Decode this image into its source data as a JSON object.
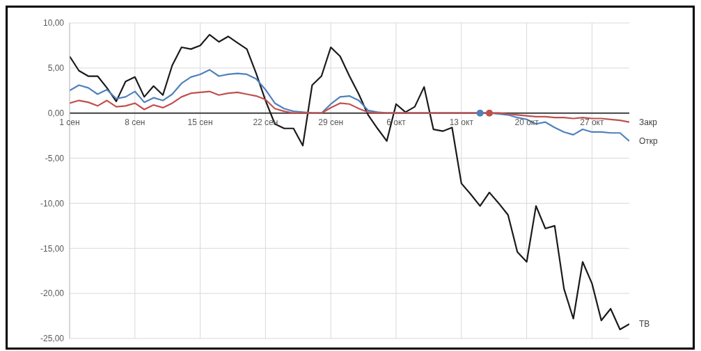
{
  "chart_data": {
    "type": "line",
    "x": [
      "--09-01",
      "--09-02",
      "--09-03",
      "--09-04",
      "--09-05",
      "--09-06",
      "--09-07",
      "--09-08",
      "--09-09",
      "--09-10",
      "--09-11",
      "--09-12",
      "--09-13",
      "--09-14",
      "--09-15",
      "--09-16",
      "--09-17",
      "--09-18",
      "--09-19",
      "--09-20",
      "--09-21",
      "--09-22",
      "--09-23",
      "--09-24",
      "--09-25",
      "--09-26",
      "--09-27",
      "--09-28",
      "--09-29",
      "--09-30",
      "--10-01",
      "--10-02",
      "--10-03",
      "--10-04",
      "--10-05",
      "--10-06",
      "--10-07",
      "--10-08",
      "--10-09",
      "--10-10",
      "--10-11",
      "--10-12",
      "--10-13",
      "--10-14",
      "--10-15",
      "--10-16",
      "--10-17",
      "--10-18",
      "--10-19",
      "--10-20",
      "--10-21",
      "--10-22",
      "--10-23",
      "--10-24",
      "--10-25",
      "--10-26",
      "--10-27",
      "--10-28",
      "--10-29",
      "--10-30",
      "--10-31"
    ],
    "series": [
      {
        "name": "ТВ",
        "color": "#1a1a1a",
        "values": [
          6.3,
          4.7,
          4.1,
          4.1,
          2.8,
          1.3,
          3.5,
          4.0,
          1.8,
          3.0,
          2.0,
          5.3,
          7.3,
          7.1,
          7.5,
          8.7,
          7.9,
          8.5,
          7.8,
          7.1,
          4.4,
          1.4,
          -1.2,
          -1.7,
          -1.7,
          -3.6,
          3.1,
          4.1,
          7.3,
          6.3,
          4.1,
          2.1,
          -0.2,
          -1.7,
          -3.1,
          1.0,
          0.1,
          0.7,
          2.9,
          -1.8,
          -2.0,
          -1.6,
          -7.8,
          -9.0,
          -10.3,
          -8.8,
          -10.0,
          -11.3,
          -15.4,
          -16.5,
          -10.3,
          -12.8,
          -12.5,
          -19.5,
          -22.8,
          -16.5,
          -18.9,
          -23.0,
          -21.7,
          -24.0,
          -23.4
        ]
      },
      {
        "name": "Откр",
        "color": "#4f81bd",
        "values": [
          2.5,
          3.1,
          2.8,
          2.1,
          2.6,
          1.6,
          1.8,
          2.4,
          1.2,
          1.7,
          1.4,
          2.1,
          3.3,
          4.0,
          4.3,
          4.8,
          4.1,
          4.3,
          4.4,
          4.3,
          3.8,
          2.6,
          1.1,
          0.5,
          0.2,
          0.1,
          0,
          0,
          1.0,
          1.8,
          1.9,
          1.4,
          0.3,
          0.1,
          0,
          0,
          0,
          0,
          0,
          0,
          0,
          0,
          0,
          0,
          0,
          0,
          -0.1,
          -0.2,
          -0.5,
          -0.7,
          -1.2,
          -1.0,
          -1.6,
          -2.1,
          -2.4,
          -1.8,
          -2.1,
          -2.1,
          -2.2,
          -2.2,
          -3.1
        ]
      },
      {
        "name": "Закр",
        "color": "#c0504d",
        "values": [
          1.1,
          1.4,
          1.2,
          0.8,
          1.4,
          0.7,
          0.8,
          1.1,
          0.4,
          0.9,
          0.6,
          1.1,
          1.8,
          2.2,
          2.3,
          2.4,
          2.0,
          2.2,
          2.3,
          2.1,
          1.9,
          1.5,
          0.5,
          0.2,
          0,
          0,
          0,
          0,
          0.6,
          1.1,
          1.0,
          0.5,
          0.1,
          0,
          0,
          0,
          0,
          0,
          0,
          0,
          0,
          0,
          0,
          0,
          0,
          0,
          0,
          -0.1,
          -0.2,
          -0.3,
          -0.4,
          -0.4,
          -0.5,
          -0.5,
          -0.6,
          -0.5,
          -0.6,
          -0.6,
          -0.7,
          -0.8,
          -1.0
        ]
      },
      {
        "type": "scatter",
        "marker": "circle",
        "color": "#4f81bd",
        "x": [
          "--10-15"
        ],
        "values": [
          0
        ]
      },
      {
        "type": "scatter",
        "marker": "circle",
        "color": "#c0504d",
        "x": [
          "--10-16"
        ],
        "values": [
          0
        ]
      }
    ],
    "xlim": [
      "--09-01",
      "--10-31"
    ],
    "xticks": [
      {
        "value": "--09-01",
        "label": "1 сен"
      },
      {
        "value": "--09-08",
        "label": "8 сен"
      },
      {
        "value": "--09-15",
        "label": "15 сен"
      },
      {
        "value": "--09-22",
        "label": "22 сен"
      },
      {
        "value": "--09-29",
        "label": "29 сен"
      },
      {
        "value": "--10-06",
        "label": "6 окт"
      },
      {
        "value": "--10-13",
        "label": "13 окт"
      },
      {
        "value": "--10-20",
        "label": "20 окт"
      },
      {
        "value": "--10-27",
        "label": "27 окт"
      }
    ],
    "ylim": [
      -25,
      10
    ],
    "yticks": [
      {
        "value": -25,
        "label": "-25,00"
      },
      {
        "value": -20,
        "label": "-20,00"
      },
      {
        "value": -15,
        "label": "-15,00"
      },
      {
        "value": -10,
        "label": "-10,00"
      },
      {
        "value": -5,
        "label": "-5,00"
      },
      {
        "value": 0,
        "label": "0,00"
      },
      {
        "value": 5,
        "label": "5,00"
      },
      {
        "value": 10,
        "label": "10,00"
      }
    ],
    "grid": true,
    "marker": "none",
    "line_style": "solid"
  }
}
